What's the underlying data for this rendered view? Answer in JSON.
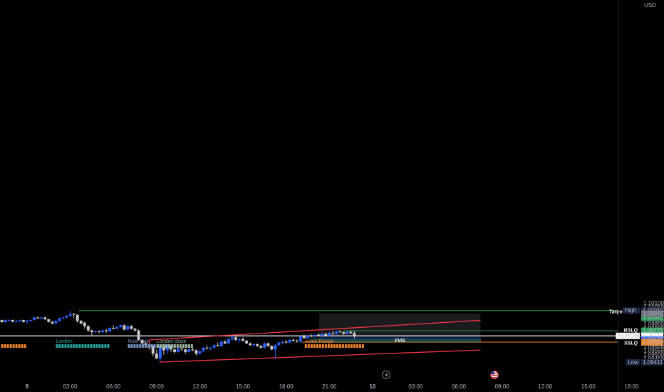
{
  "chart_data": {
    "type": "candlestick",
    "symbol": "EURUSD",
    "currency": "USD",
    "ylim": [
      1.094,
      1.1015
    ],
    "y_ticks": [
      "1.10100",
      "1.10050",
      "1.10000",
      "1.09950",
      "1.09900",
      "1.09850",
      "1.09800",
      "1.09750",
      "1.09700",
      "1.09650",
      "1.09600",
      "1.09550",
      "1.09500",
      "1.09450"
    ],
    "x_ticks": [
      {
        "label": "9",
        "bold": true,
        "t": 0
      },
      {
        "label": "03:00",
        "t": 3
      },
      {
        "label": "06:00",
        "t": 6
      },
      {
        "label": "09:00",
        "t": 9
      },
      {
        "label": "12:00",
        "t": 12
      },
      {
        "label": "15:00",
        "t": 15
      },
      {
        "label": "18:00",
        "t": 18
      },
      {
        "label": "21:00",
        "t": 21
      },
      {
        "label": "10",
        "bold": true,
        "t": 24
      },
      {
        "label": "03:00",
        "t": 27
      },
      {
        "label": "06:00",
        "t": 30
      },
      {
        "label": "09:00",
        "t": 33
      },
      {
        "label": "12:00",
        "t": 36
      },
      {
        "label": "15:00",
        "t": 39
      },
      {
        "label": "18:00",
        "t": 42
      }
    ],
    "price_labels": [
      {
        "tag": "High",
        "value": "1.10010",
        "price": 1.1001,
        "color": "#1c2540"
      },
      {
        "tag": "",
        "value": "1.10010",
        "price": 1.1001,
        "color": "#2e9e5b",
        "offset": 10
      },
      {
        "tag": "",
        "value": "1.09975",
        "price": 1.09975,
        "color": "#6b6f78"
      },
      {
        "tag": "",
        "value": "1.09775",
        "price": 1.09776,
        "color": "#2e9e5b"
      },
      {
        "tag": "",
        "value": "1.09775",
        "price": 1.09776,
        "color": "#f0852d",
        "offset": 9
      },
      {
        "tag": "EURUSD",
        "value": "1.09717",
        "sub": "09:56",
        "price": 1.09717,
        "color": "#ffffff"
      },
      {
        "tag": "",
        "value": "1.09675",
        "price": 1.09672,
        "color": "#2962ff"
      },
      {
        "tag": "",
        "value": "1.09645",
        "price": 1.09645,
        "color": "#f0852d"
      },
      {
        "tag": "Low",
        "value": "1.09411",
        "price": 1.09411,
        "color": "#1c2540"
      }
    ],
    "annotations": [
      {
        "text": "Target Price",
        "price": 1.1
      },
      {
        "text": "BSLQ",
        "price": 1.09785
      },
      {
        "text": "SSLQ",
        "price": 1.09635
      },
      {
        "text": "FVG",
        "price": 1.09664,
        "align": "center"
      }
    ],
    "sessions": [
      {
        "name": "London",
        "color": "#26a69a",
        "t0": 2.0,
        "t1": 5.6
      },
      {
        "name": "New York",
        "color": "#7b93c7",
        "t0": 7.0,
        "t1": 10.2
      },
      {
        "name": "London close",
        "color": "#9db5a0",
        "t0": 9.0,
        "t1": 11.5
      },
      {
        "name": "Asian Range",
        "color": "#f0852d",
        "t0": 19.3,
        "t1": 23.4
      },
      {
        "name": "",
        "color": "#f0852d",
        "t0": -1.8,
        "t1": -0.1
      }
    ],
    "levels": {
      "target": {
        "price": 1.1001,
        "t0": 3.6,
        "color": "#2e9e5b"
      },
      "bslq": {
        "price": 1.09776,
        "t0": 22.0,
        "color": "#2e9e5b"
      },
      "sslq": {
        "price": 1.09645,
        "t0": 19.1,
        "color": "#f0852d"
      },
      "current": {
        "price": 1.09717,
        "color": "#ffffff"
      }
    },
    "channel": {
      "upper": [
        [
          8.5,
          1.0967
        ],
        [
          31.5,
          1.09897
        ]
      ],
      "lower": [
        [
          9.2,
          1.09413
        ],
        [
          31.5,
          1.09553
        ]
      ],
      "color": "#f23645"
    },
    "position": {
      "t0": 20.3,
      "t1": 31.5,
      "stop_top": 1.09975,
      "entry": 1.0972,
      "target_bottom": 1.09658,
      "fvg_top": 1.0968,
      "fvg_bottom": 1.09655
    },
    "candles": [
      [
        -1.75,
        1.099,
        1.09905,
        1.0987,
        1.09875
      ],
      [
        -1.5,
        1.09875,
        1.0991,
        1.0987,
        1.099
      ],
      [
        -1.25,
        1.099,
        1.0991,
        1.0989,
        1.099
      ],
      [
        -1.0,
        1.099,
        1.09905,
        1.09875,
        1.0988
      ],
      [
        -0.75,
        1.0988,
        1.099,
        1.0987,
        1.0989
      ],
      [
        -0.5,
        1.0989,
        1.09905,
        1.0988,
        1.099
      ],
      [
        -0.25,
        1.099,
        1.09905,
        1.0987,
        1.0988
      ],
      [
        0.0,
        1.0988,
        1.099,
        1.0986,
        1.09895
      ],
      [
        0.25,
        1.09895,
        1.0991,
        1.0988,
        1.099
      ],
      [
        0.5,
        1.099,
        1.0994,
        1.0989,
        1.0993
      ],
      [
        0.75,
        1.0993,
        1.0994,
        1.0991,
        1.0992
      ],
      [
        1.0,
        1.0992,
        1.09935,
        1.0991,
        1.0993
      ],
      [
        1.25,
        1.0993,
        1.0994,
        1.099,
        1.0991
      ],
      [
        1.5,
        1.0991,
        1.0991,
        1.0987,
        1.0988
      ],
      [
        1.75,
        1.0988,
        1.0989,
        1.0985,
        1.0986
      ],
      [
        2.0,
        1.0986,
        1.099,
        1.0985,
        1.0989
      ],
      [
        2.25,
        1.0989,
        1.0993,
        1.0988,
        1.0992
      ],
      [
        2.5,
        1.0992,
        1.0994,
        1.0991,
        1.0993
      ],
      [
        2.75,
        1.0993,
        1.0996,
        1.0992,
        1.0995
      ],
      [
        3.0,
        1.0995,
        1.1001,
        1.0994,
        1.0997
      ],
      [
        3.25,
        1.0997,
        1.0998,
        1.0992,
        1.0996
      ],
      [
        3.5,
        1.0996,
        1.0997,
        1.0987,
        1.0989
      ],
      [
        3.75,
        1.0989,
        1.099,
        1.0985,
        1.0986
      ],
      [
        4.0,
        1.0987,
        1.0988,
        1.098,
        1.0983
      ],
      [
        4.25,
        1.0983,
        1.0984,
        1.0976,
        1.0978
      ],
      [
        4.5,
        1.0978,
        1.0979,
        1.0972,
        1.0976
      ],
      [
        4.75,
        1.0976,
        1.0978,
        1.0975,
        1.0977
      ],
      [
        5.0,
        1.0977,
        1.0978,
        1.0975,
        1.0976
      ],
      [
        5.25,
        1.0976,
        1.0979,
        1.0975,
        1.0978
      ],
      [
        5.5,
        1.0978,
        1.098,
        1.0975,
        1.0977
      ],
      [
        5.75,
        1.0977,
        1.0982,
        1.0976,
        1.0981
      ],
      [
        6.0,
        1.0981,
        1.0984,
        1.0979,
        1.098
      ],
      [
        6.25,
        1.098,
        1.0983,
        1.0979,
        1.0982
      ],
      [
        6.5,
        1.0982,
        1.0985,
        1.0981,
        1.0984
      ],
      [
        6.75,
        1.0984,
        1.0985,
        1.0978,
        1.0979
      ],
      [
        7.0,
        1.0979,
        1.0984,
        1.0978,
        1.0983
      ],
      [
        7.25,
        1.0983,
        1.0984,
        1.0979,
        1.098
      ],
      [
        7.5,
        1.098,
        1.0981,
        1.0976,
        1.0978
      ],
      [
        7.75,
        1.0978,
        1.0979,
        1.0966,
        1.0967
      ],
      [
        8.0,
        1.0967,
        1.0968,
        1.0961,
        1.0963
      ],
      [
        8.25,
        1.0963,
        1.0965,
        1.0959,
        1.0961
      ],
      [
        8.5,
        1.0961,
        1.0962,
        1.0956,
        1.096
      ],
      [
        8.75,
        1.096,
        1.0961,
        1.0948,
        1.0951
      ],
      [
        9.0,
        1.0951,
        1.0956,
        1.0945,
        1.09455
      ],
      [
        9.25,
        1.09455,
        1.0961,
        1.09411,
        1.096
      ],
      [
        9.5,
        1.096,
        1.0963,
        1.095,
        1.0955
      ],
      [
        9.75,
        1.0955,
        1.0962,
        1.0951,
        1.0961
      ],
      [
        10.0,
        1.0961,
        1.0962,
        1.0953,
        1.0956
      ],
      [
        10.25,
        1.0956,
        1.0957,
        1.0951,
        1.0953
      ],
      [
        10.5,
        1.0953,
        1.0958,
        1.0952,
        1.0957
      ],
      [
        10.75,
        1.0957,
        1.0958,
        1.0954,
        1.0956
      ],
      [
        11.0,
        1.0956,
        1.0957,
        1.0951,
        1.0953
      ],
      [
        11.25,
        1.0953,
        1.0957,
        1.0952,
        1.0956
      ],
      [
        11.5,
        1.0956,
        1.0958,
        1.0954,
        1.0955
      ],
      [
        11.75,
        1.0955,
        1.0956,
        1.0949,
        1.0951
      ],
      [
        12.0,
        1.0951,
        1.0955,
        1.095,
        1.0954
      ],
      [
        12.25,
        1.0954,
        1.0959,
        1.0953,
        1.0958
      ],
      [
        12.5,
        1.0958,
        1.0961,
        1.0956,
        1.0957
      ],
      [
        12.75,
        1.0957,
        1.0959,
        1.0955,
        1.0958
      ],
      [
        13.0,
        1.0958,
        1.0962,
        1.0957,
        1.0961
      ],
      [
        13.25,
        1.0961,
        1.0964,
        1.0959,
        1.096
      ],
      [
        13.5,
        1.096,
        1.0966,
        1.0959,
        1.0965
      ],
      [
        13.75,
        1.0965,
        1.0967,
        1.0962,
        1.0963
      ],
      [
        14.0,
        1.0963,
        1.0969,
        1.0962,
        1.0968
      ],
      [
        14.25,
        1.0968,
        1.0972,
        1.0966,
        1.097
      ],
      [
        14.5,
        1.097,
        1.0971,
        1.0966,
        1.0967
      ],
      [
        14.75,
        1.0967,
        1.0969,
        1.0964,
        1.0968
      ],
      [
        15.0,
        1.0968,
        1.097,
        1.0965,
        1.0966
      ],
      [
        15.25,
        1.0966,
        1.0967,
        1.0962,
        1.0963
      ],
      [
        15.5,
        1.0963,
        1.0964,
        1.096,
        1.0961
      ],
      [
        15.75,
        1.0961,
        1.0963,
        1.0959,
        1.0962
      ],
      [
        16.0,
        1.0962,
        1.0963,
        1.0959,
        1.096
      ],
      [
        16.25,
        1.096,
        1.0961,
        1.0957,
        1.0958
      ],
      [
        16.5,
        1.0958,
        1.0964,
        1.0957,
        1.0963
      ],
      [
        16.75,
        1.0963,
        1.0964,
        1.0959,
        1.096
      ],
      [
        17.0,
        1.096,
        1.0961,
        1.0955,
        1.0956
      ],
      [
        17.25,
        1.0956,
        1.0962,
        1.09455,
        1.0961
      ],
      [
        17.5,
        1.0961,
        1.0965,
        1.096,
        1.0964
      ],
      [
        17.75,
        1.0964,
        1.0966,
        1.0962,
        1.0965
      ],
      [
        18.0,
        1.0965,
        1.0967,
        1.0963,
        1.0964
      ],
      [
        18.25,
        1.0964,
        1.0968,
        1.0963,
        1.0967
      ],
      [
        18.5,
        1.0967,
        1.0969,
        1.0965,
        1.0966
      ],
      [
        18.75,
        1.0966,
        1.0968,
        1.0964,
        1.0965
      ],
      [
        19.0,
        1.0965,
        1.0972,
        1.0964,
        1.0971
      ],
      [
        19.25,
        1.0971,
        1.0973,
        1.0968,
        1.0969
      ],
      [
        19.5,
        1.0969,
        1.0973,
        1.0968,
        1.0972
      ],
      [
        19.75,
        1.0972,
        1.0974,
        1.097,
        1.0971
      ],
      [
        20.0,
        1.0971,
        1.0974,
        1.0969,
        1.0973
      ],
      [
        20.25,
        1.0973,
        1.0975,
        1.0971,
        1.0972
      ],
      [
        20.5,
        1.0972,
        1.0975,
        1.097,
        1.0974
      ],
      [
        20.75,
        1.0974,
        1.0975,
        1.0971,
        1.0972
      ],
      [
        21.0,
        1.0972,
        1.0976,
        1.0971,
        1.0975
      ],
      [
        21.25,
        1.0975,
        1.09775,
        1.0973,
        1.0974
      ],
      [
        21.5,
        1.0974,
        1.09775,
        1.0973,
        1.0977
      ],
      [
        21.75,
        1.0977,
        1.09778,
        1.0975,
        1.0976
      ],
      [
        22.0,
        1.0976,
        1.0977,
        1.0973,
        1.0974
      ],
      [
        22.25,
        1.0974,
        1.0977,
        1.0973,
        1.09765
      ],
      [
        22.5,
        1.09765,
        1.09776,
        1.0974,
        1.0975
      ],
      [
        22.75,
        1.0975,
        1.09772,
        1.0969,
        1.09717
      ]
    ]
  }
}
